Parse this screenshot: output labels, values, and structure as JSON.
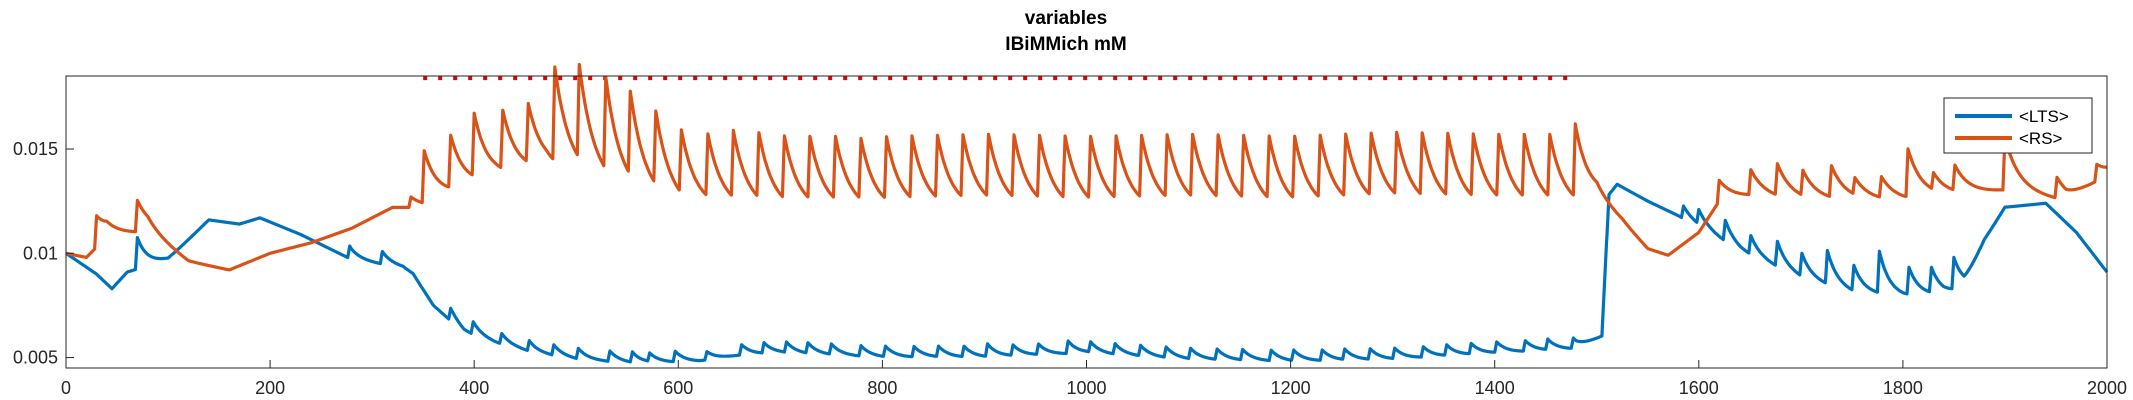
{
  "chart_data": {
    "type": "line",
    "title": "variables",
    "subtitle": "IBiMMich mM",
    "xlim": [
      0,
      2000
    ],
    "ylim": [
      0.0045,
      0.0185
    ],
    "x_ticks": [
      0,
      200,
      400,
      600,
      800,
      1000,
      1200,
      1400,
      1600,
      1800,
      2000
    ],
    "y_ticks": [
      0.005,
      0.01,
      0.015
    ],
    "y_tick_labels": [
      "0.005",
      "0.01",
      "0.015"
    ],
    "grid": false,
    "legend_position": "top-right",
    "stimulus": {
      "x_start": 350,
      "x_end": 1480,
      "y": 0.0184,
      "color": "#e60000"
    },
    "series": [
      {
        "name": "<LTS>",
        "color": "#0072bd",
        "baseline": [
          [
            0,
            0.01
          ],
          [
            30,
            0.009
          ],
          [
            45,
            0.0083
          ],
          [
            60,
            0.0091
          ],
          [
            100,
            0.0097
          ],
          [
            140,
            0.0116
          ],
          [
            170,
            0.0114
          ],
          [
            190,
            0.0117
          ],
          [
            230,
            0.0109
          ],
          [
            280,
            0.0097
          ],
          [
            330,
            0.0093
          ],
          [
            340,
            0.009
          ],
          [
            360,
            0.0075
          ],
          [
            390,
            0.0062
          ],
          [
            420,
            0.0057
          ],
          [
            460,
            0.0052
          ],
          [
            500,
            0.0049
          ],
          [
            560,
            0.0047
          ],
          [
            620,
            0.0048
          ],
          [
            660,
            0.0051
          ],
          [
            700,
            0.0052
          ],
          [
            800,
            0.005
          ],
          [
            900,
            0.005
          ],
          [
            1000,
            0.0052
          ],
          [
            1100,
            0.0049
          ],
          [
            1200,
            0.0048
          ],
          [
            1300,
            0.0049
          ],
          [
            1400,
            0.0052
          ],
          [
            1480,
            0.0054
          ],
          [
            1505,
            0.006
          ],
          [
            1512,
            0.0128
          ],
          [
            1520,
            0.0133
          ],
          [
            1550,
            0.0125
          ],
          [
            1580,
            0.0118
          ],
          [
            1610,
            0.011
          ],
          [
            1640,
            0.0101
          ],
          [
            1700,
            0.0088
          ],
          [
            1750,
            0.0081
          ],
          [
            1800,
            0.0079
          ],
          [
            1840,
            0.008
          ],
          [
            1860,
            0.0083
          ],
          [
            1880,
            0.0106
          ],
          [
            1900,
            0.0122
          ],
          [
            1940,
            0.0124
          ],
          [
            1970,
            0.011
          ],
          [
            2000,
            0.0091
          ]
        ],
        "pulses": {
          "x": [
            70,
            278,
            310,
            377,
            399,
            427,
            454,
            478,
            502,
            533,
            555,
            572,
            597,
            628,
            662,
            684,
            706,
            727,
            750,
            779,
            803,
            831,
            855,
            880,
            903,
            928,
            953,
            982,
            1004,
            1028,
            1053,
            1078,
            1102,
            1128,
            1153,
            1181,
            1203,
            1231,
            1253,
            1278,
            1302,
            1330,
            1353,
            1377,
            1402,
            1430,
            1452,
            1477,
            1585,
            1600,
            1626,
            1651,
            1677,
            1701,
            1726,
            1752,
            1777,
            1806,
            1828,
            1850
          ],
          "amp": [
            0.0015,
            0.0006,
            0.0006,
            0.0006,
            0.0006,
            0.0005,
            0.0005,
            0.0005,
            0.0005,
            0.0005,
            0.0005,
            0.0004,
            0.0005,
            0.0004,
            0.0005,
            0.0005,
            0.0005,
            0.0005,
            0.0005,
            0.0005,
            0.0005,
            0.0005,
            0.0005,
            0.0005,
            0.0006,
            0.0005,
            0.0005,
            0.0006,
            0.0005,
            0.0005,
            0.0005,
            0.0005,
            0.0005,
            0.0005,
            0.0005,
            0.0005,
            0.0005,
            0.0005,
            0.0005,
            0.0005,
            0.0005,
            0.0005,
            0.0005,
            0.0005,
            0.0005,
            0.0005,
            0.0005,
            0.0005,
            0.0006,
            0.0007,
            0.001,
            0.0009,
            0.0012,
            0.0011,
            0.0016,
            0.0012,
            0.002,
            0.0013,
            0.0012,
            0.0015
          ],
          "tau": 10
        }
      },
      {
        "name": "<RS>",
        "color": "#d95319",
        "baseline": [
          [
            0,
            0.01
          ],
          [
            20,
            0.0098
          ],
          [
            40,
            0.0108
          ],
          [
            80,
            0.011
          ],
          [
            120,
            0.0096
          ],
          [
            160,
            0.0092
          ],
          [
            200,
            0.01
          ],
          [
            240,
            0.0105
          ],
          [
            280,
            0.0112
          ],
          [
            320,
            0.0122
          ],
          [
            350,
            0.0122
          ],
          [
            380,
            0.0128
          ],
          [
            420,
            0.0135
          ],
          [
            470,
            0.014
          ],
          [
            500,
            0.0137
          ],
          [
            540,
            0.013
          ],
          [
            600,
            0.0122
          ],
          [
            700,
            0.012
          ],
          [
            800,
            0.012
          ],
          [
            900,
            0.0121
          ],
          [
            1000,
            0.012
          ],
          [
            1100,
            0.0121
          ],
          [
            1200,
            0.012
          ],
          [
            1300,
            0.0122
          ],
          [
            1400,
            0.0121
          ],
          [
            1480,
            0.0121
          ],
          [
            1500,
            0.0125
          ],
          [
            1525,
            0.0115
          ],
          [
            1550,
            0.0102
          ],
          [
            1570,
            0.0099
          ],
          [
            1600,
            0.011
          ],
          [
            1620,
            0.0125
          ],
          [
            1650,
            0.0127
          ],
          [
            1700,
            0.0125
          ],
          [
            1800,
            0.0125
          ],
          [
            1900,
            0.013
          ],
          [
            1960,
            0.0125
          ],
          [
            2000,
            0.0137
          ]
        ],
        "pulses": {
          "x": [
            30,
            70,
            338,
            351,
            377,
            400,
            428,
            453,
            479,
            503,
            529,
            553,
            578,
            603,
            629,
            654,
            679,
            704,
            729,
            754,
            779,
            804,
            829,
            854,
            879,
            904,
            929,
            954,
            979,
            1004,
            1029,
            1054,
            1079,
            1104,
            1129,
            1154,
            1179,
            1204,
            1229,
            1254,
            1279,
            1304,
            1329,
            1354,
            1379,
            1404,
            1429,
            1454,
            1479,
            1620,
            1651,
            1677,
            1702,
            1730,
            1753,
            1779,
            1805,
            1830,
            1851,
            1900,
            1951,
            1990
          ],
          "amp": [
            0.0015,
            0.0015,
            0.0005,
            0.0025,
            0.0025,
            0.003,
            0.0028,
            0.0028,
            0.0045,
            0.0045,
            0.0044,
            0.004,
            0.0035,
            0.003,
            0.003,
            0.0032,
            0.0031,
            0.003,
            0.003,
            0.003,
            0.0029,
            0.003,
            0.003,
            0.003,
            0.003,
            0.003,
            0.003,
            0.003,
            0.003,
            0.003,
            0.003,
            0.003,
            0.003,
            0.003,
            0.003,
            0.003,
            0.003,
            0.003,
            0.003,
            0.003,
            0.003,
            0.003,
            0.003,
            0.003,
            0.003,
            0.003,
            0.003,
            0.003,
            0.0035,
            0.001,
            0.0012,
            0.0015,
            0.0012,
            0.0015,
            0.0008,
            0.001,
            0.0023,
            0.0008,
            0.0012,
            0.0025,
            0.001,
            0.0008
          ],
          "tau": 14
        }
      }
    ]
  }
}
